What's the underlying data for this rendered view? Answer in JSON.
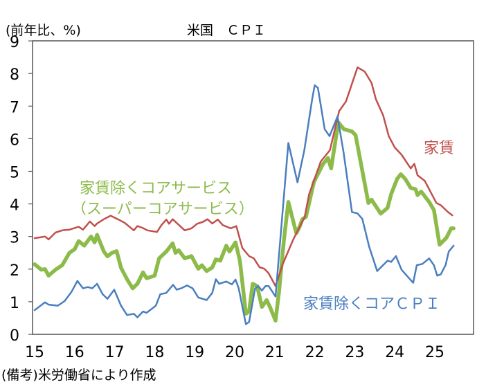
{
  "chart_data": {
    "type": "line",
    "title": "米国　ＣＰＩ",
    "ylabel": "(前年比、%)",
    "xlabel": "",
    "note": "(備考)米労働省により作成",
    "ylim": [
      0,
      9
    ],
    "xlim": [
      14.95,
      25.65
    ],
    "yticks": [
      "0",
      "1",
      "2",
      "3",
      "4",
      "5",
      "6",
      "7",
      "8",
      "9"
    ],
    "xticks": [
      "15",
      "16",
      "17",
      "18",
      "19",
      "20",
      "21",
      "22",
      "23",
      "24",
      "25"
    ],
    "grid": false,
    "series": [
      {
        "name": "家賃",
        "label_lines": [
          "家賃"
        ],
        "color": "#c0504d",
        "x": [
          15.0,
          15.17,
          15.26,
          15.35,
          15.52,
          15.69,
          15.87,
          16.1,
          16.21,
          16.38,
          16.5,
          16.56,
          16.73,
          16.9,
          17.08,
          17.25,
          17.48,
          17.57,
          17.71,
          17.82,
          18.06,
          18.17,
          18.29,
          18.36,
          18.45,
          18.75,
          18.92,
          19.06,
          19.21,
          19.32,
          19.44,
          19.58,
          19.7,
          19.9,
          20.04,
          20.19,
          20.36,
          20.48,
          20.62,
          20.74,
          20.85,
          21.02,
          21.2,
          21.46,
          21.75,
          21.86,
          22.15,
          22.38,
          22.61,
          22.78,
          23.07,
          23.25,
          23.42,
          23.53,
          23.71,
          23.85,
          24.0,
          24.17,
          24.4,
          24.49,
          24.57,
          24.75,
          25.04,
          25.15,
          25.33,
          25.44
        ],
        "y": [
          2.95,
          2.98,
          3.0,
          2.91,
          3.12,
          3.19,
          3.21,
          3.3,
          3.21,
          3.46,
          3.32,
          3.4,
          3.53,
          3.64,
          3.53,
          3.42,
          3.19,
          3.32,
          3.26,
          3.19,
          3.14,
          3.35,
          3.52,
          3.39,
          3.53,
          3.19,
          3.25,
          3.39,
          3.45,
          3.53,
          3.4,
          3.52,
          3.35,
          3.25,
          3.32,
          2.65,
          2.4,
          2.33,
          2.06,
          2.01,
          1.87,
          1.48,
          2.15,
          2.9,
          3.6,
          4.3,
          5.3,
          5.65,
          6.85,
          7.14,
          8.19,
          8.06,
          7.71,
          7.21,
          6.72,
          6.08,
          5.73,
          5.51,
          5.09,
          5.23,
          4.88,
          4.71,
          4.03,
          3.96,
          3.75,
          3.65
        ]
      },
      {
        "name": "家賃除くコアサービス（スーパーコアサービス）",
        "label_lines": [
          "家賃除くコアサービス",
          "（スーパーコアサービス）"
        ],
        "color": "#8cbb4a",
        "x": [
          15.0,
          15.17,
          15.26,
          15.35,
          15.52,
          15.69,
          15.87,
          16.0,
          16.1,
          16.24,
          16.41,
          16.5,
          16.56,
          16.73,
          16.82,
          16.93,
          17.05,
          17.16,
          17.31,
          17.45,
          17.57,
          17.71,
          17.8,
          18.0,
          18.11,
          18.29,
          18.45,
          18.52,
          18.6,
          18.75,
          18.92,
          19.09,
          19.18,
          19.3,
          19.44,
          19.53,
          19.64,
          19.79,
          19.87,
          20.02,
          20.13,
          20.28,
          20.36,
          20.45,
          20.56,
          20.68,
          20.8,
          20.88,
          21.02,
          21.11,
          21.23,
          21.34,
          21.54,
          21.63,
          21.69,
          21.78,
          21.98,
          22.21,
          22.33,
          22.41,
          22.59,
          22.73,
          22.93,
          23.02,
          23.34,
          23.42,
          23.65,
          23.82,
          23.91,
          24.06,
          24.15,
          24.26,
          24.4,
          24.52,
          24.57,
          24.66,
          24.86,
          24.98,
          25.12,
          25.29,
          25.41,
          25.47
        ],
        "y": [
          2.15,
          1.98,
          2.0,
          1.8,
          1.98,
          2.12,
          2.5,
          2.61,
          2.86,
          2.72,
          3.0,
          2.82,
          3.05,
          2.54,
          2.39,
          2.5,
          2.55,
          2.04,
          1.69,
          1.41,
          1.55,
          1.9,
          1.72,
          1.8,
          2.33,
          2.54,
          2.79,
          2.5,
          2.58,
          2.33,
          2.4,
          2.01,
          2.12,
          1.94,
          2.05,
          2.3,
          2.26,
          2.72,
          2.54,
          2.82,
          2.26,
          0.63,
          0.7,
          1.55,
          1.48,
          0.84,
          1.05,
          0.84,
          0.42,
          1.34,
          2.89,
          4.06,
          3.1,
          3.32,
          3.53,
          3.6,
          4.67,
          5.23,
          5.41,
          5.09,
          6.5,
          6.29,
          6.22,
          6.11,
          4.03,
          4.13,
          3.7,
          3.88,
          4.3,
          4.77,
          4.91,
          4.77,
          4.49,
          4.45,
          4.27,
          4.38,
          4.06,
          3.81,
          2.75,
          2.96,
          3.25,
          3.25
        ]
      },
      {
        "name": "家賃除くコアＣＰＩ",
        "label_lines": [
          "家賃除くコアＣＰＩ"
        ],
        "color": "#4a7ebf",
        "x": [
          15.0,
          15.26,
          15.35,
          15.58,
          15.75,
          15.92,
          16.07,
          16.21,
          16.33,
          16.44,
          16.56,
          16.7,
          16.82,
          16.99,
          17.16,
          17.31,
          17.48,
          17.57,
          17.71,
          17.8,
          18.03,
          18.14,
          18.29,
          18.46,
          18.55,
          18.66,
          18.81,
          18.95,
          19.09,
          19.3,
          19.44,
          19.53,
          19.61,
          19.79,
          19.93,
          20.02,
          20.1,
          20.28,
          20.36,
          20.51,
          20.59,
          20.68,
          20.77,
          20.85,
          21.02,
          21.34,
          21.57,
          21.74,
          21.94,
          22.0,
          22.08,
          22.25,
          22.37,
          22.57,
          22.72,
          22.93,
          23.07,
          23.19,
          23.36,
          23.56,
          23.82,
          23.91,
          24.03,
          24.17,
          24.46,
          24.55,
          24.69,
          24.86,
          24.98,
          25.06,
          25.15,
          25.27,
          25.35,
          25.47
        ],
        "y": [
          0.74,
          0.98,
          0.91,
          0.88,
          1.02,
          1.3,
          1.64,
          1.41,
          1.45,
          1.41,
          1.55,
          1.23,
          1.09,
          1.37,
          0.88,
          0.59,
          0.63,
          0.52,
          0.7,
          0.66,
          0.88,
          1.23,
          1.27,
          1.52,
          1.37,
          1.41,
          1.5,
          1.41,
          1.13,
          1.05,
          1.27,
          1.69,
          1.55,
          1.62,
          1.53,
          1.68,
          1.41,
          0.31,
          0.38,
          1.41,
          1.48,
          1.34,
          1.48,
          1.48,
          1.16,
          5.87,
          4.66,
          5.65,
          7.24,
          7.64,
          7.56,
          6.29,
          6.08,
          6.68,
          5.59,
          3.75,
          3.71,
          3.54,
          2.69,
          1.94,
          2.26,
          2.22,
          2.4,
          1.98,
          1.58,
          2.12,
          2.16,
          2.33,
          2.12,
          1.8,
          1.84,
          2.12,
          2.54,
          2.72
        ]
      }
    ]
  }
}
